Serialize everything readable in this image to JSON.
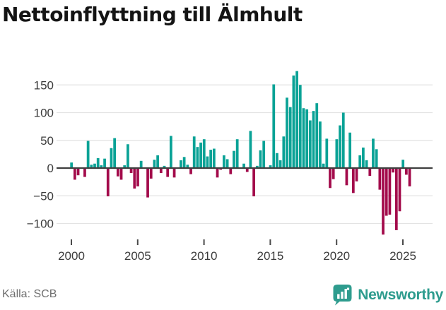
{
  "title": "Nettoinflyttning till Älmhult",
  "footer": {
    "source": "Källa: SCB",
    "brand": "Newsworthy"
  },
  "colors": {
    "positive_bar": "#0aa296",
    "negative_bar": "#a30b4b",
    "gridline": "#e3e3e3",
    "zero_line": "#3f3f3f",
    "axis_text": "#3c3c3c",
    "tick_mark": "#4a4a4a",
    "brand_teal": "#2e9c8e",
    "source_text": "#6f6f6f"
  },
  "chart_data": {
    "type": "bar",
    "title": "Nettoinflyttning till Älmhult",
    "source": "Källa: SCB",
    "frequency": "quarterly",
    "x_start": "2000-Q1",
    "x_end": "2025-Q3",
    "values": [
      10,
      -21,
      -13,
      0,
      -16,
      49,
      6,
      8,
      18,
      5,
      17,
      -51,
      36,
      54,
      -15,
      -21,
      5,
      43,
      -9,
      -37,
      -33,
      13,
      0,
      -53,
      -19,
      15,
      23,
      -9,
      4,
      -16,
      58,
      -17,
      1,
      14,
      20,
      6,
      -11,
      57,
      38,
      46,
      52,
      21,
      33,
      35,
      -17,
      -3,
      23,
      16,
      -11,
      31,
      52,
      0,
      8,
      -7,
      67,
      -51,
      4,
      32,
      49,
      0,
      5,
      151,
      27,
      14,
      57,
      127,
      110,
      167,
      175,
      150,
      108,
      106,
      86,
      103,
      117,
      84,
      8,
      53,
      -36,
      -20,
      52,
      77,
      100,
      -31,
      64,
      -45,
      -24,
      23,
      37,
      14,
      -14,
      53,
      34,
      -39,
      -120,
      -86,
      -84,
      -8,
      -112,
      -78,
      15,
      -12,
      -33
    ],
    "yticks": [
      150,
      100,
      50,
      0,
      -50,
      -100
    ],
    "ytick_labels": [
      "150",
      "100",
      "50",
      "0",
      "−50",
      "−100"
    ],
    "xticks": [
      2000,
      2005,
      2010,
      2015,
      2020,
      2025
    ],
    "ylim": [
      -130,
      185
    ],
    "grid": true,
    "legend": false,
    "bar_color_positive": "#0aa296",
    "bar_color_negative": "#a30b4b"
  }
}
